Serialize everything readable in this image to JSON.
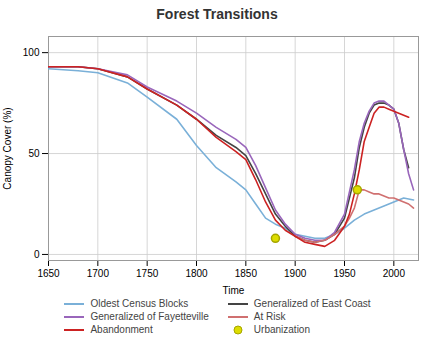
{
  "chart_data": {
    "type": "line",
    "title": "Forest Transitions",
    "xlabel": "Time",
    "ylabel": "Canopy Cover (%)",
    "xlim": [
      1650,
      2025
    ],
    "ylim": [
      -3,
      108
    ],
    "xticks": [
      1650,
      1700,
      1750,
      1800,
      1850,
      1900,
      1950,
      2000
    ],
    "yticks": [
      0,
      50,
      100
    ],
    "grid": true,
    "legend": "bottom",
    "series": [
      {
        "name": "Oldest Census Blocks",
        "color": "#7ab0d8",
        "type": "line",
        "x": [
          1650,
          1680,
          1700,
          1730,
          1750,
          1780,
          1800,
          1820,
          1840,
          1850,
          1860,
          1870,
          1880,
          1890,
          1900,
          1910,
          1920,
          1930,
          1940,
          1950,
          1960,
          1970,
          1980,
          1990,
          2000,
          2010,
          2020
        ],
        "values": [
          92,
          91,
          90,
          85,
          78,
          67,
          54,
          43,
          36,
          32,
          25,
          18,
          15,
          13,
          10,
          9,
          8,
          8,
          10,
          13,
          17,
          20,
          22,
          24,
          26,
          28,
          27
        ]
      },
      {
        "name": "Generalized of East Coast",
        "color": "#444444",
        "type": "line",
        "x": [
          1650,
          1680,
          1700,
          1730,
          1750,
          1780,
          1800,
          1820,
          1840,
          1850,
          1860,
          1870,
          1880,
          1890,
          1900,
          1910,
          1920,
          1930,
          1940,
          1950,
          1960,
          1965,
          1970,
          1975,
          1980,
          1985,
          1990,
          1995,
          2000,
          2005,
          2010,
          2015
        ],
        "values": [
          93,
          93,
          92,
          88,
          82,
          74,
          67,
          59,
          53,
          49,
          40,
          30,
          20,
          14,
          9,
          7,
          6,
          7,
          10,
          18,
          38,
          53,
          63,
          70,
          74,
          75,
          75,
          74,
          72,
          65,
          52,
          43
        ]
      },
      {
        "name": "Generalized of Fayetteville",
        "color": "#9966bb",
        "type": "line",
        "x": [
          1650,
          1680,
          1700,
          1730,
          1750,
          1780,
          1800,
          1820,
          1840,
          1850,
          1860,
          1870,
          1880,
          1890,
          1900,
          1910,
          1920,
          1930,
          1940,
          1950,
          1960,
          1965,
          1970,
          1975,
          1980,
          1985,
          1990,
          1995,
          2000,
          2005,
          2010,
          2015,
          2020
        ],
        "values": [
          93,
          93,
          92,
          89,
          83,
          76,
          70,
          63,
          57,
          53,
          44,
          33,
          22,
          15,
          10,
          8,
          7,
          7,
          11,
          20,
          42,
          56,
          65,
          71,
          75,
          76,
          76,
          74,
          72,
          65,
          52,
          40,
          32
        ]
      },
      {
        "name": "At Risk",
        "color": "#d07070",
        "type": "line",
        "x": [
          1900,
          1910,
          1920,
          1930,
          1940,
          1950,
          1955,
          1960,
          1965,
          1970,
          1975,
          1980,
          1985,
          1990,
          1995,
          2000,
          2005,
          2010,
          2015,
          2020
        ],
        "values": [
          9,
          7,
          6,
          7,
          10,
          14,
          18,
          23,
          32,
          32,
          31,
          30,
          30,
          29,
          28,
          28,
          27,
          26,
          25,
          23
        ]
      },
      {
        "name": "Abandonment",
        "color": "#cc2222",
        "type": "line",
        "x": [
          1650,
          1680,
          1700,
          1730,
          1750,
          1780,
          1800,
          1820,
          1840,
          1850,
          1860,
          1870,
          1880,
          1890,
          1900,
          1910,
          1920,
          1930,
          1940,
          1950,
          1955,
          1960,
          1965,
          1970,
          1975,
          1980,
          1985,
          1990,
          1995,
          2000,
          2005,
          2010,
          2015
        ],
        "values": [
          93,
          93,
          92,
          88,
          82,
          74,
          67,
          58,
          51,
          47,
          37,
          26,
          17,
          12,
          9,
          6,
          5,
          4,
          7,
          14,
          20,
          30,
          42,
          56,
          63,
          70,
          73,
          73,
          72,
          71,
          70,
          69,
          68
        ]
      },
      {
        "name": "Urbanization",
        "color": "#dddd00",
        "type": "scatter",
        "marker": "circle",
        "x": [
          1880,
          1963
        ],
        "values": [
          8,
          32
        ]
      }
    ]
  }
}
